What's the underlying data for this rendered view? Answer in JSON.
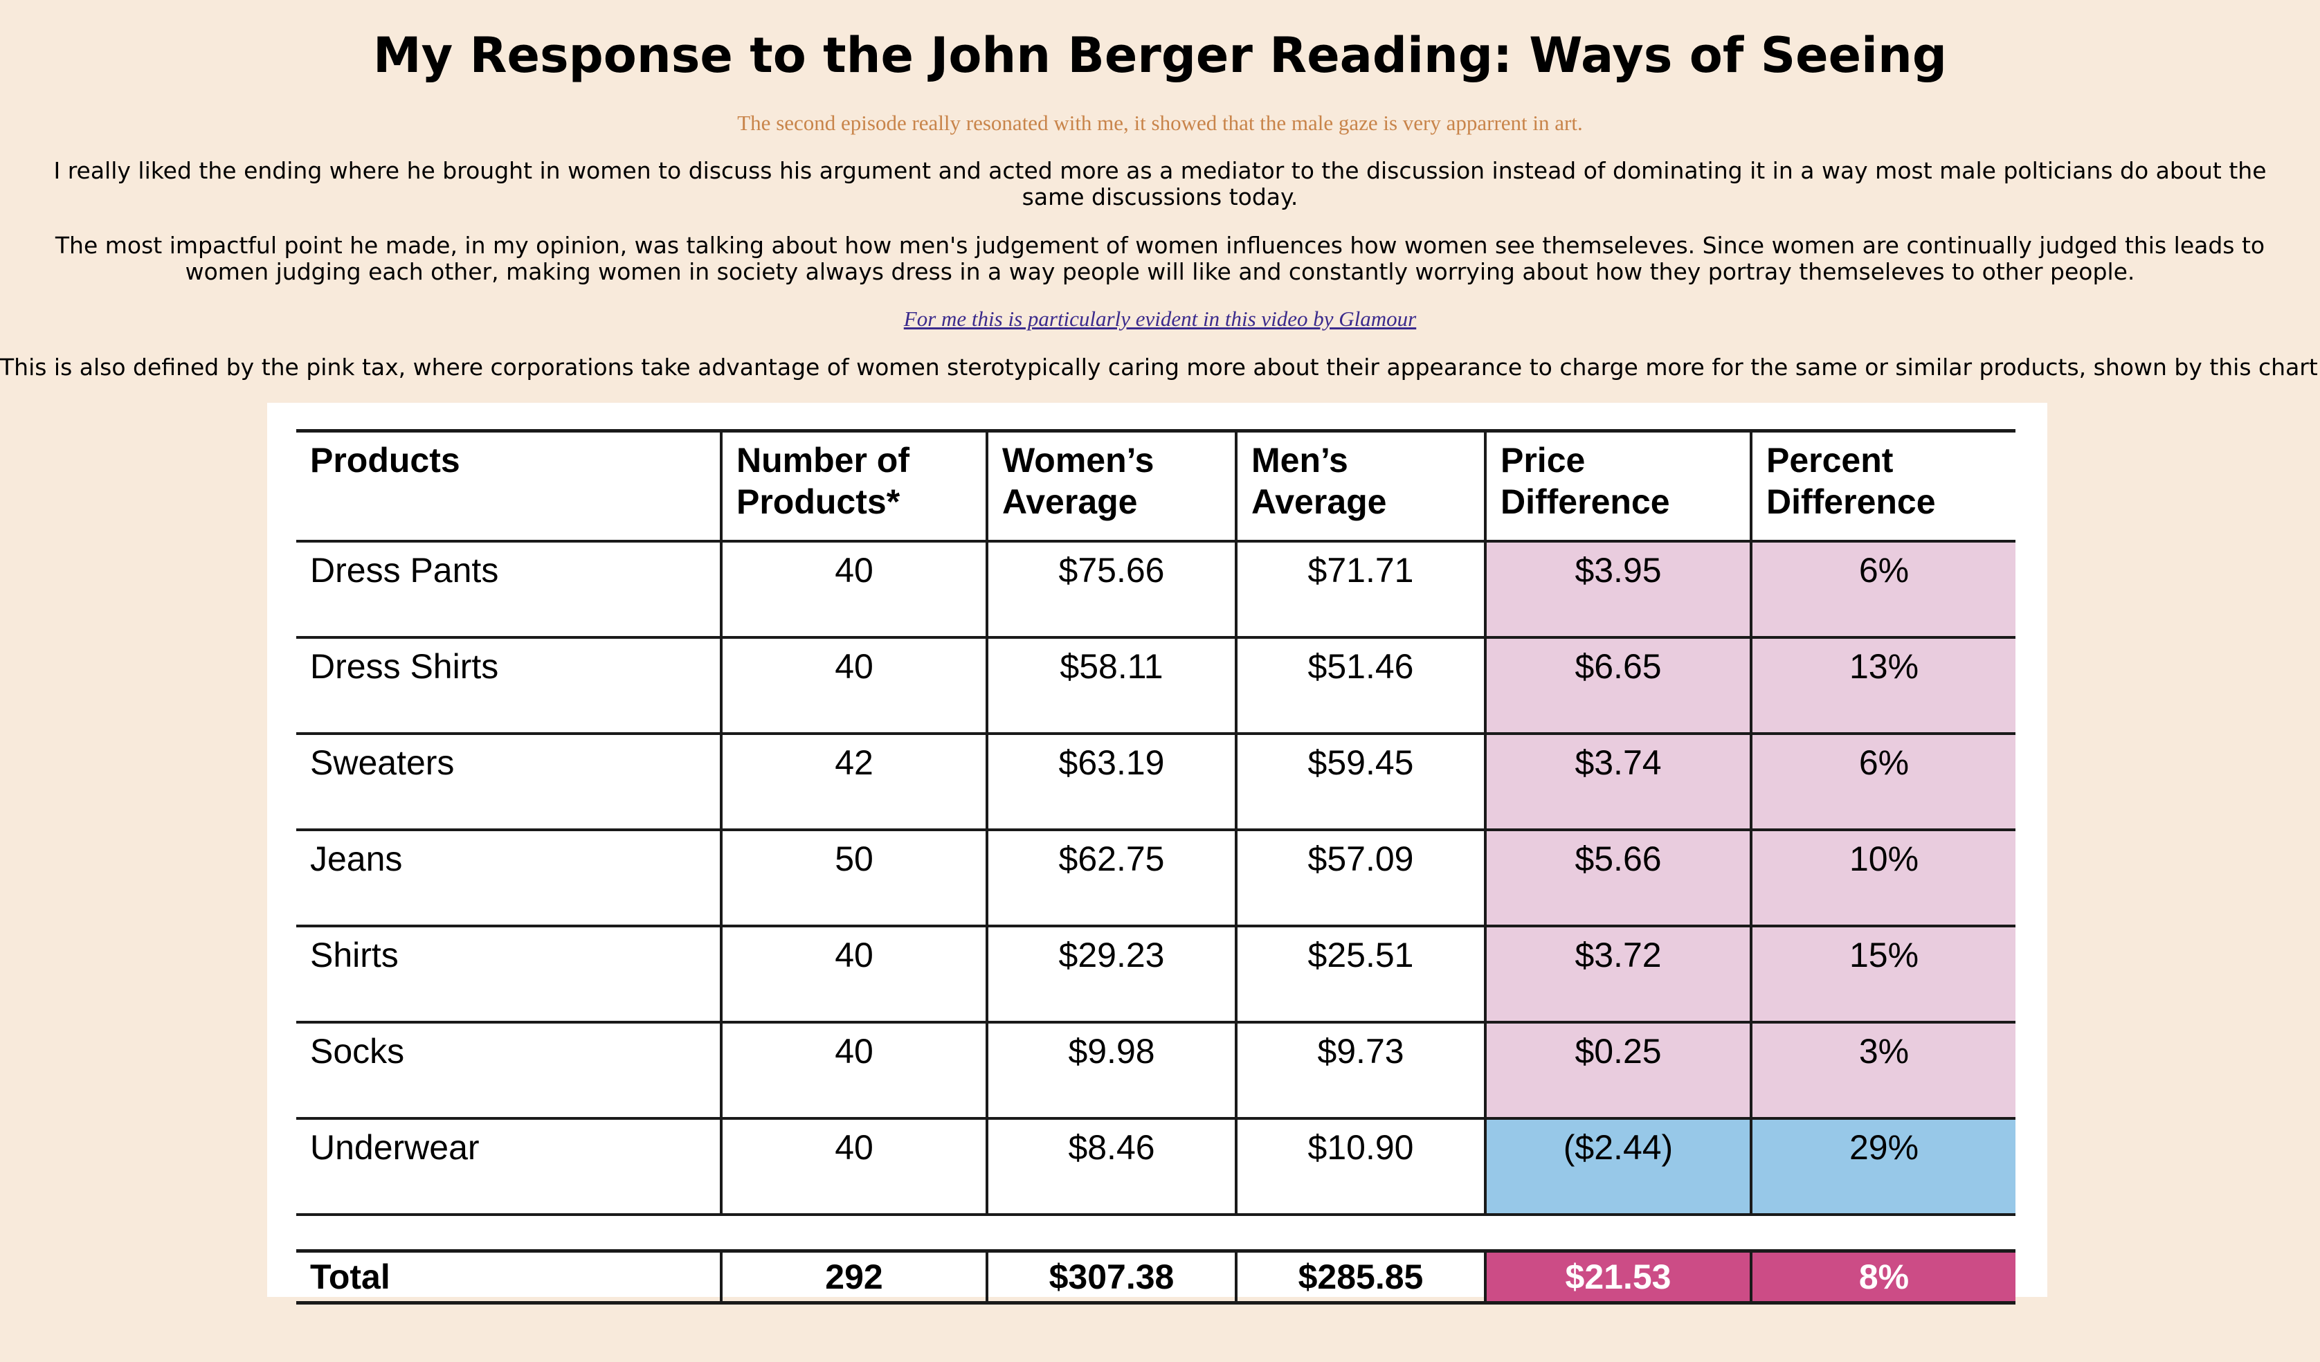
{
  "page": {
    "title": "My Response to the John Berger Reading: Ways of Seeing",
    "subtitle": "The second episode really resonated with me, it showed that the male gaze is very apparrent in art.",
    "paragraph_1": "I really liked the ending where he brought in women to discuss his argument and acted more as a mediator to the discussion instead of dominating it in a way most male polticians do about the same discussions today.",
    "paragraph_2": "The most impactful point he made, in my opinion, was talking about how men's judgement of women influences how women see themseleves. Since women are continually judged this leads to women judging each other, making women in society always dress in a way people will like and constantly worrying about how they portray themseleves to other people.",
    "link_text": "For me this is particularly evident in this video by Glamour",
    "paragraph_3": "This is also defined by the pink tax, where corporations take advantage of women sterotypically caring more about their appearance to charge more for the same or similar products, shown by this chart:"
  },
  "colors": {
    "background": "#f8eadb",
    "subtitle": "#c8844a",
    "link": "#3a2a8c",
    "pink_cell": "#e9ccde",
    "blue_cell": "#97c8e8",
    "total_highlight": "#cc4c86"
  },
  "chart_data": {
    "type": "table",
    "columns": [
      "Products",
      "Number of Products*",
      "Women’s Average",
      "Men’s Average",
      "Price Difference",
      "Percent Difference"
    ],
    "rows": [
      [
        "Dress Pants",
        "40",
        "$75.66",
        "$71.71",
        "$3.95",
        "6%"
      ],
      [
        "Dress Shirts",
        "40",
        "$58.11",
        "$51.46",
        "$6.65",
        "13%"
      ],
      [
        "Sweaters",
        "42",
        "$63.19",
        "$59.45",
        "$3.74",
        "6%"
      ],
      [
        "Jeans",
        "50",
        "$62.75",
        "$57.09",
        "$5.66",
        "10%"
      ],
      [
        "Shirts",
        "40",
        "$29.23",
        "$25.51",
        "$3.72",
        "15%"
      ],
      [
        "Socks",
        "40",
        "$9.98",
        "$9.73",
        "$0.25",
        "3%"
      ],
      [
        "Underwear",
        "40",
        "$8.46",
        "$10.90",
        "($2.44)",
        "29%"
      ]
    ],
    "total": [
      "Total",
      "292",
      "$307.38",
      "$285.85",
      "$21.53",
      "8%"
    ]
  }
}
